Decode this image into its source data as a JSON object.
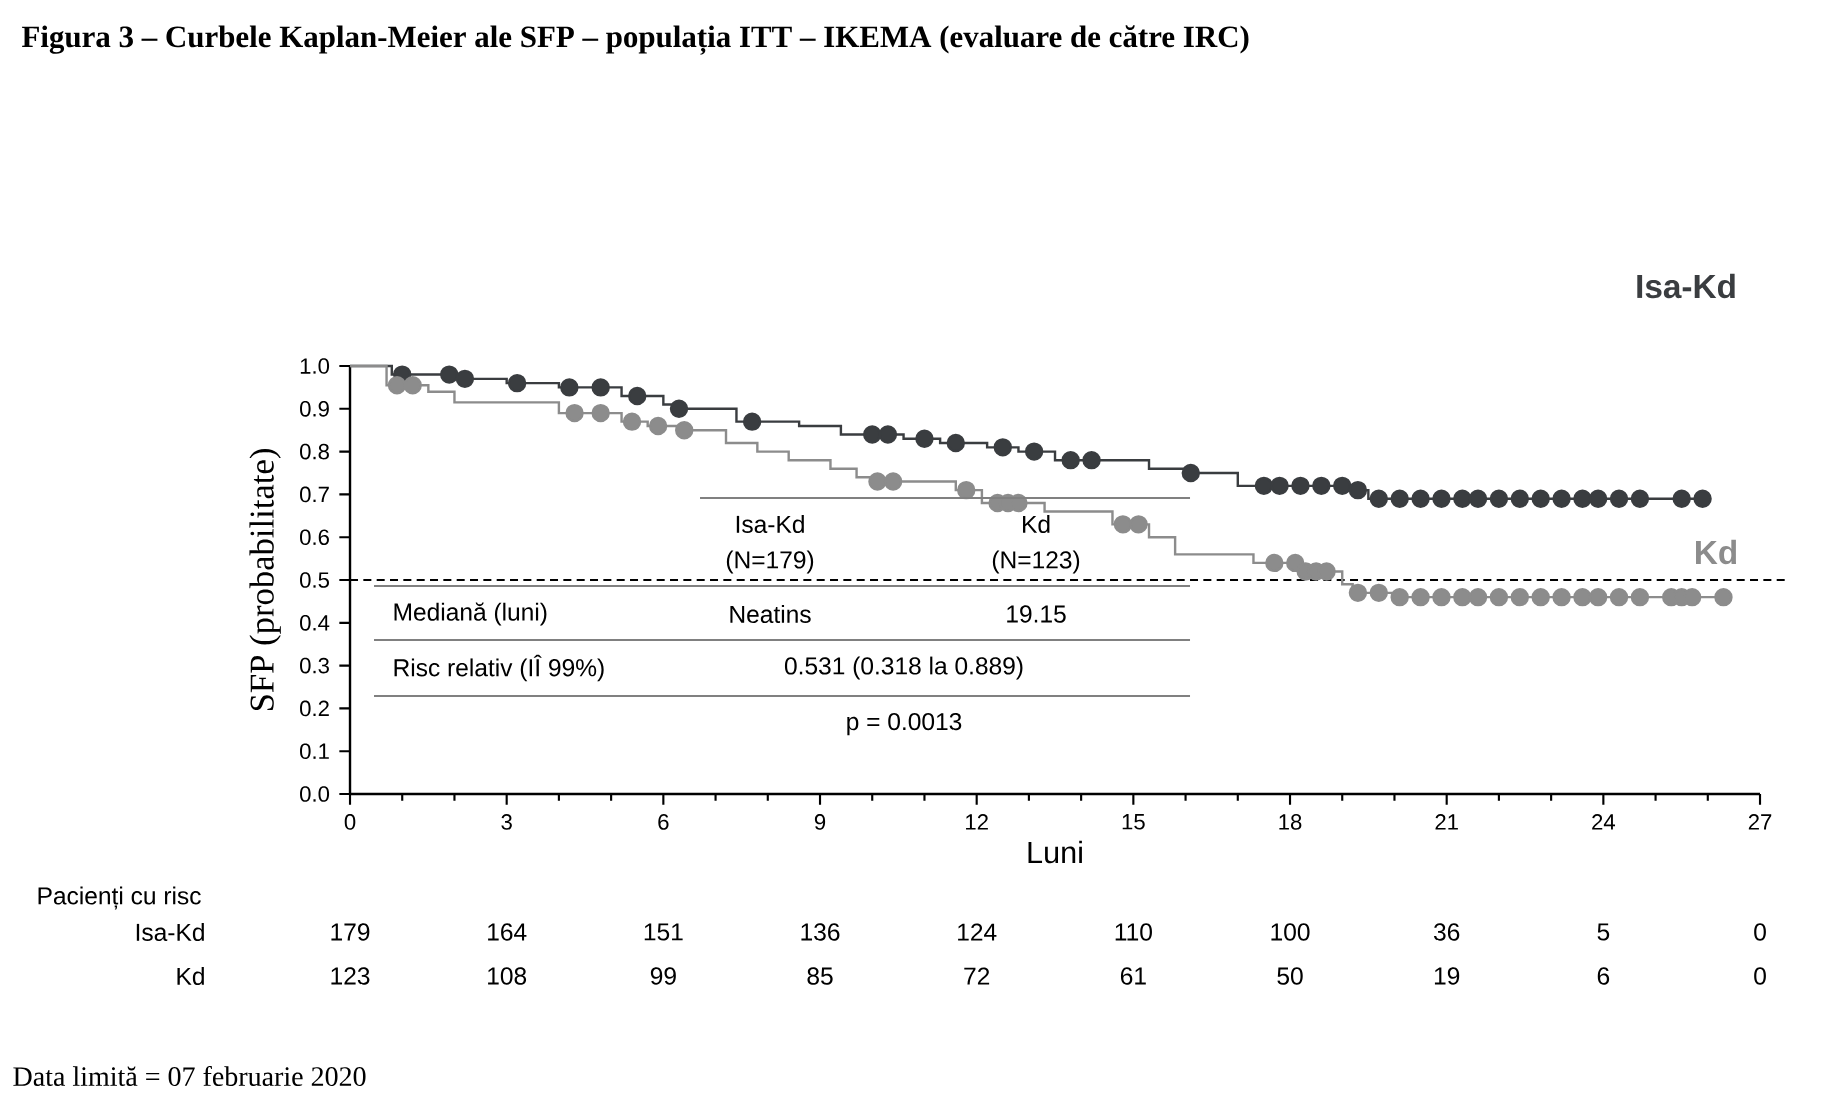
{
  "chart_data": {
    "type": "step",
    "title": "Figura 3 – Curbele Kaplan-Meier ale SFP – populația ITT – IKEMA (evaluare de către IRC)",
    "xlabel": "Luni",
    "ylabel": "SFP (probabilitate)",
    "xlim": [
      0,
      27
    ],
    "xticks": [
      0,
      3,
      6,
      9,
      12,
      15,
      18,
      21,
      24,
      27
    ],
    "ylim": [
      0,
      1
    ],
    "yticks": [
      {
        "value": 0,
        "label": "0.0"
      },
      {
        "value": 0.1,
        "label": "0.1"
      },
      {
        "value": 0.2,
        "label": "0.2"
      },
      {
        "value": 0.3,
        "label": "0.3"
      },
      {
        "value": 0.4,
        "label": "0.4"
      },
      {
        "value": 0.5,
        "label": "0.5"
      },
      {
        "value": 0.6,
        "label": "0.6"
      },
      {
        "value": 0.7,
        "label": "0.7"
      },
      {
        "value": 0.8,
        "label": "0.8"
      },
      {
        "value": 0.9,
        "label": "0.9"
      },
      {
        "value": 1,
        "label": "1.0"
      }
    ],
    "series": [
      {
        "name": "Isa-Kd",
        "color": "#3a3d40",
        "marker": "none",
        "x": [
          0,
          0.8,
          2.1,
          3.0,
          4.0,
          5.2,
          6.0,
          6.2,
          7.4,
          8.6,
          9.4,
          10.6,
          11.3,
          12.2,
          12.8,
          13.5,
          15.3,
          16.0,
          17.0,
          19.2,
          19.5,
          25.9
        ],
        "values": [
          1,
          0.98,
          0.97,
          0.96,
          0.95,
          0.93,
          0.91,
          0.9,
          0.87,
          0.86,
          0.84,
          0.83,
          0.82,
          0.81,
          0.8,
          0.78,
          0.76,
          0.75,
          0.72,
          0.71,
          0.69,
          0.69
        ]
      },
      {
        "name": "Kd",
        "color": "#8c8c8c",
        "marker": "none",
        "x": [
          0,
          0.7,
          1.5,
          2.0,
          4.0,
          5.2,
          5.7,
          6.3,
          7.2,
          7.8,
          8.4,
          9.2,
          9.7,
          10.0,
          11.6,
          12.1,
          13.3,
          14.6,
          15.3,
          15.8,
          17.3,
          18.2,
          19.0,
          19.2,
          20.0,
          26.3
        ],
        "values": [
          1,
          0.955,
          0.94,
          0.915,
          0.89,
          0.87,
          0.86,
          0.85,
          0.82,
          0.8,
          0.78,
          0.76,
          0.74,
          0.73,
          0.71,
          0.68,
          0.66,
          0.63,
          0.6,
          0.56,
          0.54,
          0.52,
          0.49,
          0.47,
          0.46,
          0.46
        ]
      },
      {
        "type": "scatter",
        "color": "#3a3d40",
        "marker": "circle",
        "x": [
          1.0,
          1.9,
          2.2,
          3.2,
          4.2,
          4.8,
          5.5,
          6.3,
          7.7,
          10.0,
          10.3,
          11.0,
          11.6,
          12.5,
          13.1,
          13.8,
          14.2,
          16.1,
          17.5,
          17.8,
          18.2,
          18.6,
          19.0,
          19.3,
          19.7,
          20.1,
          20.5,
          20.9,
          21.3,
          21.6,
          22.0,
          22.4,
          22.8,
          23.2,
          23.6,
          23.9,
          24.3,
          24.7,
          25.5,
          25.9
        ],
        "values": [
          0.98,
          0.98,
          0.97,
          0.96,
          0.95,
          0.95,
          0.93,
          0.9,
          0.87,
          0.84,
          0.84,
          0.83,
          0.82,
          0.81,
          0.8,
          0.78,
          0.78,
          0.75,
          0.72,
          0.72,
          0.72,
          0.72,
          0.72,
          0.71,
          0.69,
          0.69,
          0.69,
          0.69,
          0.69,
          0.69,
          0.69,
          0.69,
          0.69,
          0.69,
          0.69,
          0.69,
          0.69,
          0.69,
          0.69,
          0.69
        ]
      },
      {
        "type": "scatter",
        "color": "#8c8c8c",
        "marker": "circle",
        "x": [
          0.9,
          1.2,
          4.3,
          4.8,
          5.4,
          5.9,
          6.4,
          10.1,
          10.4,
          11.8,
          12.4,
          12.6,
          12.8,
          14.8,
          15.1,
          17.7,
          18.1,
          18.3,
          18.5,
          18.7,
          19.3,
          19.7,
          20.1,
          20.5,
          20.9,
          21.3,
          21.6,
          22.0,
          22.4,
          22.8,
          23.2,
          23.6,
          23.9,
          24.3,
          24.7,
          25.3,
          25.5,
          25.7,
          26.3
        ],
        "values": [
          0.955,
          0.955,
          0.89,
          0.89,
          0.87,
          0.86,
          0.85,
          0.73,
          0.73,
          0.71,
          0.68,
          0.68,
          0.68,
          0.63,
          0.63,
          0.54,
          0.54,
          0.52,
          0.52,
          0.52,
          0.47,
          0.47,
          0.46,
          0.46,
          0.46,
          0.46,
          0.46,
          0.46,
          0.46,
          0.46,
          0.46,
          0.46,
          0.46,
          0.46,
          0.46,
          0.46,
          0.46,
          0.46,
          0.46
        ]
      }
    ],
    "ref_lines": [
      {
        "axis": "y",
        "value": 0.5,
        "color": "#000000",
        "line_style": "dashed"
      }
    ],
    "annotations": [
      "Isa-Kd",
      "(N=179)",
      "Kd",
      "(N=123)",
      "Mediană (luni)",
      "Neatins",
      "19.15",
      "Risc relativ (IÎ 99%)",
      "0.531 (0.318 la 0.889)",
      "p = 0.0013",
      "Pacienți cu risc",
      "Isa-Kd",
      "Kd",
      "179",
      "164",
      "151",
      "136",
      "124",
      "110",
      "100",
      "36",
      "5",
      "0",
      "123",
      "108",
      "99",
      "85",
      "72",
      "61",
      "50",
      "19",
      "6",
      "0",
      "Data limită = 07 februarie 2020"
    ]
  }
}
